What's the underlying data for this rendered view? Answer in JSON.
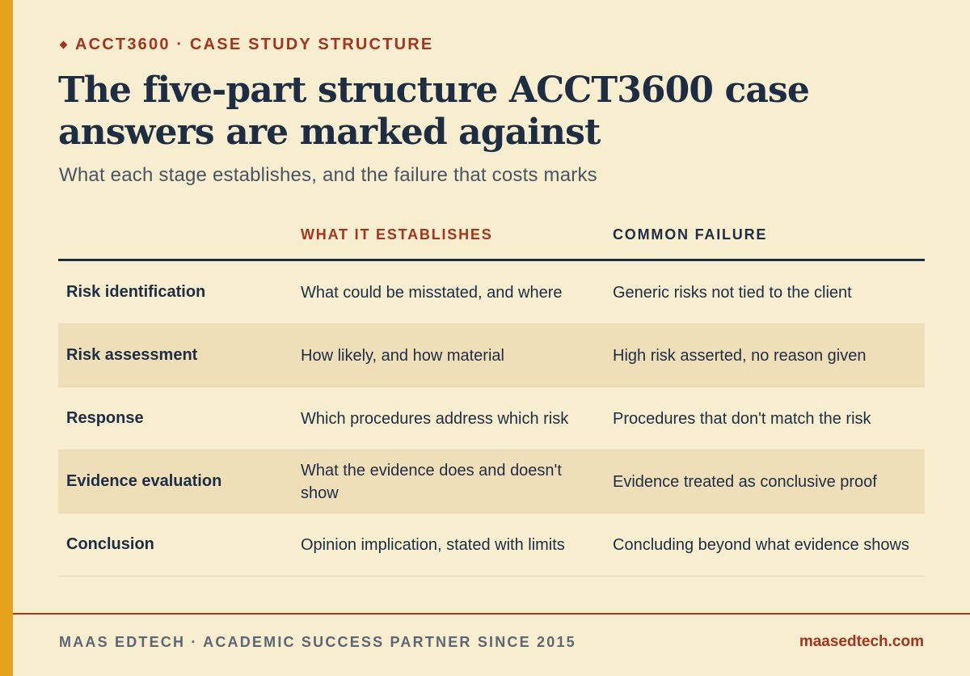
{
  "eyebrow": "ACCT3600 · CASE STUDY STRUCTURE",
  "title": "The five-part structure ACCT3600 case answers are marked against",
  "subtitle": "What each stage establishes, and the failure that costs marks",
  "table": {
    "headers": {
      "stage": "",
      "establishes": "WHAT IT ESTABLISHES",
      "failure": "COMMON FAILURE"
    },
    "rows": [
      {
        "stage": "Risk identification",
        "establishes": "What could be misstated, and where",
        "failure": "Generic risks not tied to the client"
      },
      {
        "stage": "Risk assessment",
        "establishes": "How likely, and how material",
        "failure": "High risk asserted, no reason given"
      },
      {
        "stage": "Response",
        "establishes": "Which procedures address which risk",
        "failure": "Procedures that don't match the risk"
      },
      {
        "stage": "Evidence evaluation",
        "establishes": "What the evidence does and doesn't show",
        "failure": "Evidence treated as conclusive proof"
      },
      {
        "stage": "Conclusion",
        "establishes": "Opinion implication, stated with limits",
        "failure": "Concluding beyond what evidence shows"
      }
    ]
  },
  "footer": {
    "left": "MAAS EDTECH · ACADEMIC SUCCESS PARTNER SINCE 2015",
    "right": "maasedtech.com"
  },
  "colors": {
    "background": "#f7edcf",
    "accent_bar": "#e5a21c",
    "brand_red": "#a8331d",
    "navy": "#1d2d44",
    "row_alt": "#eedfb9"
  }
}
